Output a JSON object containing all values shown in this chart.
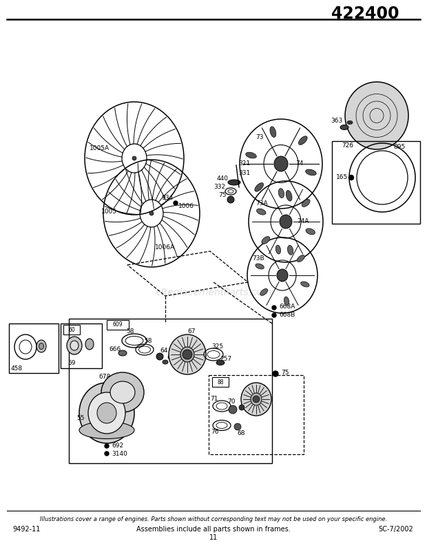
{
  "title": "422400",
  "footer_left": "9492-11",
  "footer_center": "Assemblies include all parts shown in frames.",
  "footer_center2": "11",
  "footer_right": "5C-7/2002",
  "footer_note": "Illustrations cover a range of engines. Parts shown without corresponding text may not be used on your specific engine.",
  "background_color": "#ffffff",
  "title_fontsize": 17,
  "footer_fontsize": 7,
  "fig_width": 6.2,
  "fig_height": 8.02
}
